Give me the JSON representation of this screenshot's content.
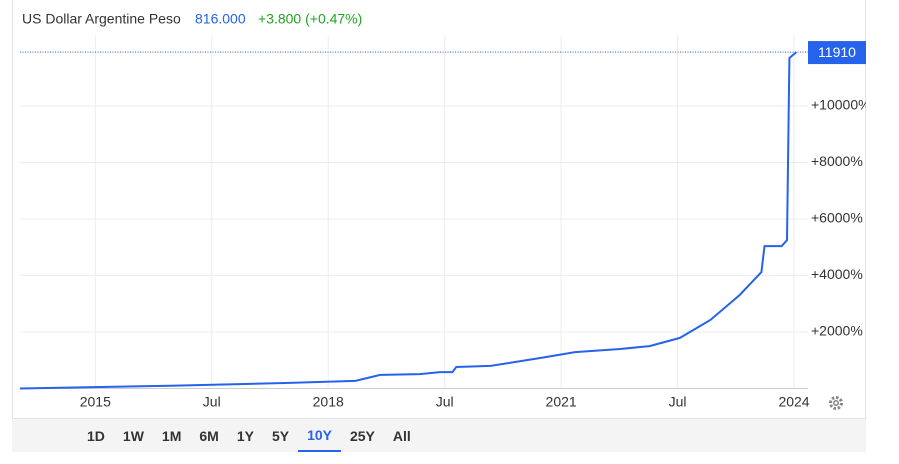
{
  "header": {
    "title": "US Dollar Argentine Peso",
    "price": "816.000",
    "change": "+3.800 (+0.47%)"
  },
  "chart_data": {
    "type": "line",
    "x": [
      2014.03,
      2015.97,
      2017.5,
      2018.35,
      2018.67,
      2019.18,
      2019.44,
      2019.6,
      2019.65,
      2020.09,
      2020.73,
      2021.18,
      2021.76,
      2022.14,
      2022.53,
      2022.92,
      2023.3,
      2023.58,
      2023.62,
      2023.84,
      2023.91,
      2023.94,
      2024.03
    ],
    "values": [
      0,
      100,
      200,
      270,
      480,
      510,
      580,
      580,
      760,
      800,
      1080,
      1290,
      1400,
      1500,
      1790,
      2420,
      3310,
      4120,
      5040,
      5040,
      5250,
      11700,
      11910
    ],
    "color": "#2563eb",
    "last_value": 11910,
    "xlim": [
      2014.03,
      2024.18
    ],
    "xticks": [
      2015,
      {
        "value": 2016.5,
        "label": "Jul"
      },
      2018,
      {
        "value": 2019.5,
        "label": "Jul"
      },
      2021,
      {
        "value": 2022.5,
        "label": "Jul"
      },
      2024
    ],
    "ylim": [
      0,
      12500
    ],
    "yticks": [
      {
        "value": 2000,
        "label": "+2000%"
      },
      {
        "value": 4000,
        "label": "+4000%"
      },
      {
        "value": 6000,
        "label": "+6000%"
      },
      {
        "value": 8000,
        "label": "+8000%"
      },
      {
        "value": 10000,
        "label": "+10000%"
      }
    ],
    "grid": true
  },
  "range_buttons": [
    "1D",
    "1W",
    "1M",
    "6M",
    "1Y",
    "5Y",
    "10Y",
    "25Y",
    "All"
  ],
  "active_range_index": 6
}
